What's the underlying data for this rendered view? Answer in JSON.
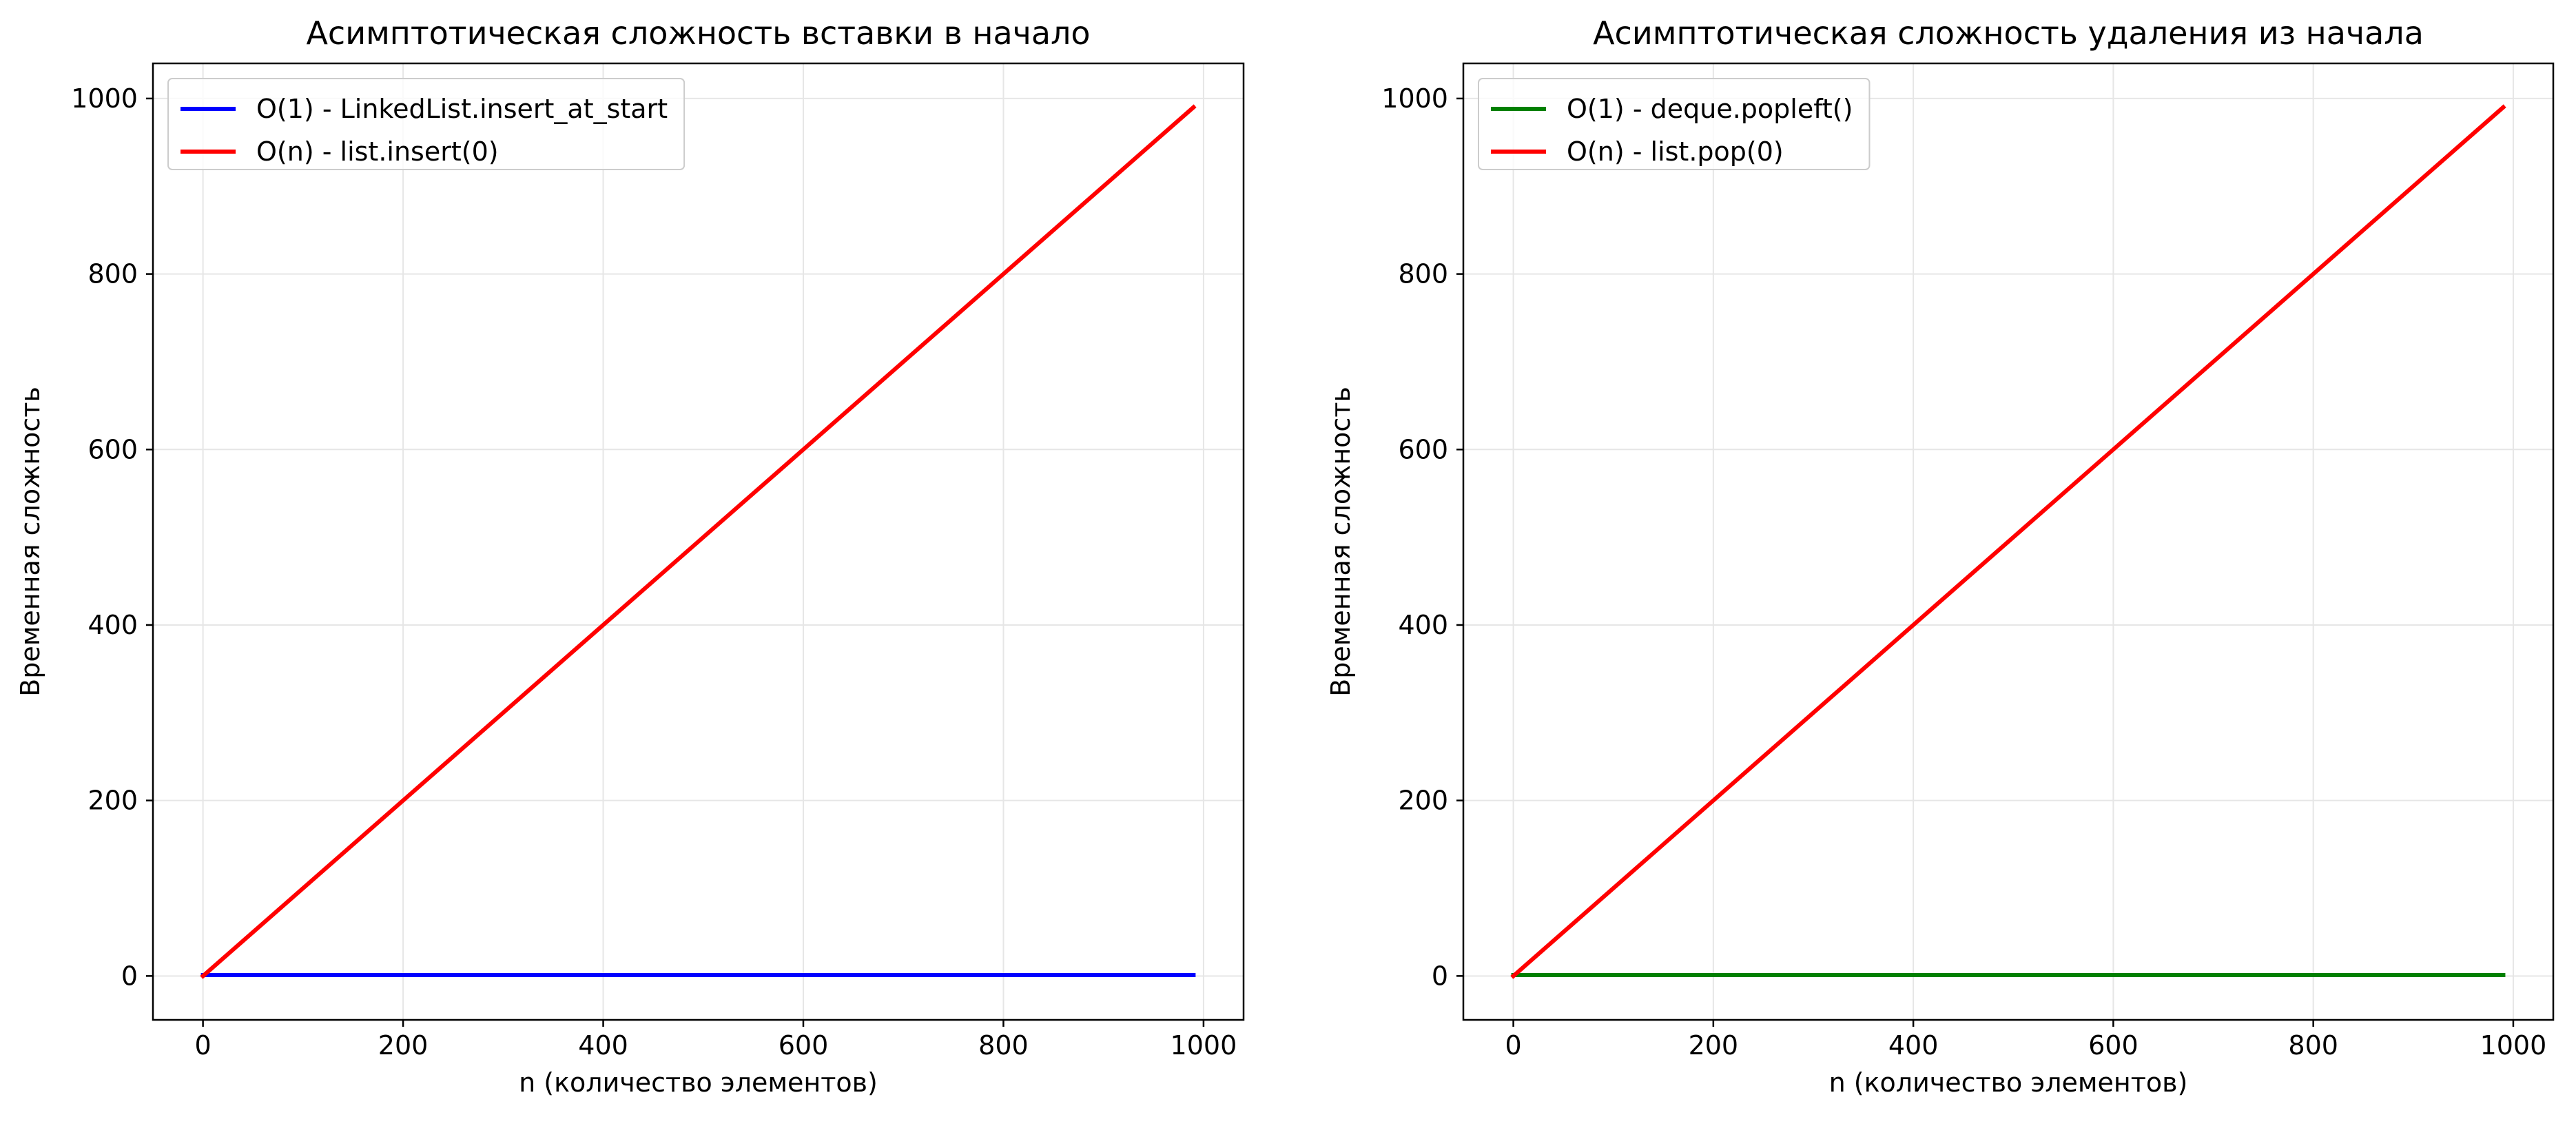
{
  "chart_data": [
    {
      "type": "line",
      "title": "Асимптотическая сложность вставки в начало",
      "xlabel": "n (количество элементов)",
      "ylabel": "Временная сложность",
      "xlim": [
        -50,
        1040
      ],
      "ylim": [
        -50,
        1040
      ],
      "xticks": [
        0,
        200,
        400,
        600,
        800,
        1000
      ],
      "yticks": [
        0,
        200,
        400,
        600,
        800,
        1000
      ],
      "grid": true,
      "legend_position": "top-left",
      "series": [
        {
          "name": "O(1) - LinkedList.insert_at_start",
          "color": "#0000ff",
          "x": [
            0,
            990
          ],
          "y": [
            1,
            1
          ]
        },
        {
          "name": "O(n) - list.insert(0)",
          "color": "#ff0000",
          "x": [
            0,
            990
          ],
          "y": [
            0,
            990
          ]
        }
      ]
    },
    {
      "type": "line",
      "title": "Асимптотическая сложность удаления из начала",
      "xlabel": "n (количество элементов)",
      "ylabel": "Временная сложность",
      "xlim": [
        -50,
        1040
      ],
      "ylim": [
        -50,
        1040
      ],
      "xticks": [
        0,
        200,
        400,
        600,
        800,
        1000
      ],
      "yticks": [
        0,
        200,
        400,
        600,
        800,
        1000
      ],
      "grid": true,
      "legend_position": "top-left",
      "series": [
        {
          "name": "O(1) - deque.popleft()",
          "color": "#008000",
          "x": [
            0,
            990
          ],
          "y": [
            1,
            1
          ]
        },
        {
          "name": "O(n) - list.pop(0)",
          "color": "#ff0000",
          "x": [
            0,
            990
          ],
          "y": [
            0,
            990
          ]
        }
      ]
    }
  ]
}
